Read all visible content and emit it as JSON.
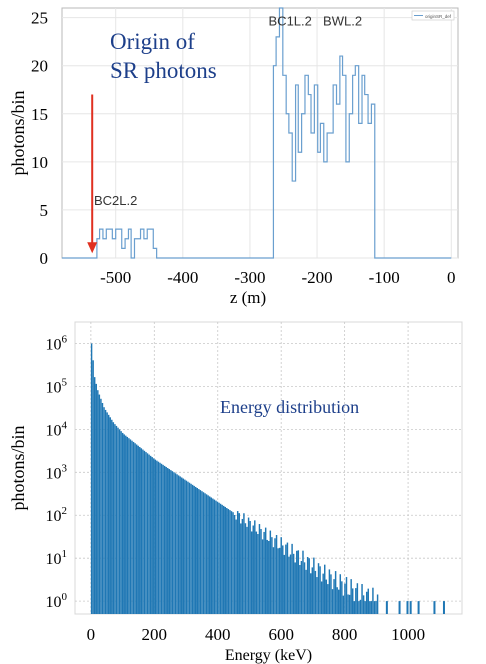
{
  "chart_data": [
    {
      "type": "line",
      "drawstyle": "steps",
      "annotation_title": [
        "Origin of",
        "SR photons"
      ],
      "ylabel": "photons/bin",
      "xlabel": "z (m)",
      "legend_entry": "originSR_def",
      "legend_position": "top-right",
      "grid": true,
      "xlim": [
        -580,
        10
      ],
      "ylim": [
        0,
        26
      ],
      "xticks": [
        -500,
        -400,
        -300,
        -200,
        -100,
        0
      ],
      "xtick_labels": [
        "-500",
        "-400",
        "-300",
        "-200",
        "-100",
        "0"
      ],
      "yticks": [
        0,
        5,
        10,
        15,
        20,
        25
      ],
      "ytick_labels": [
        "0",
        "5",
        "10",
        "15",
        "20",
        "25"
      ],
      "annotations": [
        {
          "text": "BC2L.2",
          "x": -500,
          "y": 5.5
        },
        {
          "text": "BC1L.2",
          "x": -240,
          "y": 24.2
        },
        {
          "text": "BWL.2",
          "x": -162,
          "y": 24.2
        }
      ],
      "arrow": {
        "x": -535,
        "y_from": 17,
        "y_to": 0.5,
        "color": "#e03020"
      },
      "series": [
        {
          "color": "#6a9fcf",
          "x": [
            -580,
            -528,
            -524,
            -519,
            -514,
            -510,
            -505,
            -500,
            -496,
            -491,
            -486,
            -481,
            -477,
            -472,
            -467,
            -463,
            -458,
            -453,
            -448,
            -444,
            -439,
            -434,
            -430,
            -425,
            -265,
            -261,
            -256,
            -251,
            -246,
            -242,
            -237,
            -232,
            -228,
            -223,
            -218,
            -213,
            -209,
            -204,
            -199,
            -195,
            -190,
            -185,
            -180,
            -176,
            -171,
            -166,
            -162,
            -157,
            -152,
            -147,
            -143,
            -138,
            -133,
            -129,
            -124,
            -119,
            -114,
            -110,
            -105,
            -100,
            -95,
            -91,
            -86,
            -81,
            -76,
            -72,
            -67,
            -62,
            -57,
            -53,
            -48,
            -43,
            -38,
            -34,
            -29,
            -24,
            -19,
            -15,
            -10,
            -5,
            0
          ],
          "y": [
            0,
            2,
            3,
            2,
            3,
            3,
            2,
            3,
            3,
            1,
            2,
            3,
            0,
            2,
            2,
            3,
            2,
            3,
            3,
            1,
            0,
            0,
            0,
            0,
            20,
            23,
            26,
            19,
            15,
            13,
            8,
            18,
            11,
            15,
            19,
            17,
            13,
            18,
            11,
            14,
            10,
            13,
            13,
            18,
            16,
            21,
            19,
            10,
            15,
            19,
            20,
            14,
            19,
            17,
            14,
            16,
            0,
            0,
            0,
            0,
            0,
            0,
            0,
            0,
            0,
            0,
            0,
            0,
            0,
            0,
            0,
            0,
            0,
            0,
            0,
            0,
            0,
            0,
            0,
            0,
            0
          ]
        }
      ]
    },
    {
      "type": "bar",
      "annotation_title": "Energy distribution",
      "ylabel": "photons/bin",
      "xlabel": "Energy (keV)",
      "yscale": "log",
      "color": "#1f77b4",
      "xlim": [
        -50,
        1170
      ],
      "ylim_exponent": [
        -0.3,
        6.5
      ],
      "xticks": [
        0,
        200,
        400,
        600,
        800,
        1000
      ],
      "xtick_labels": [
        "0",
        "200",
        "400",
        "600",
        "800",
        "1000"
      ],
      "ytick_exponents": [
        0,
        1,
        2,
        3,
        4,
        5,
        6
      ],
      "ytick_labels": [
        "10",
        "10",
        "10",
        "10",
        "10",
        "10",
        "10"
      ],
      "ytick_superscripts": [
        "0",
        "1",
        "2",
        "3",
        "4",
        "5",
        "6"
      ],
      "main_curve": {
        "energy_keV": [
          0,
          10,
          20,
          40,
          70,
          100,
          150,
          200,
          250,
          300,
          350,
          400,
          450,
          500,
          550,
          600,
          650,
          700,
          750,
          800,
          850,
          900
        ],
        "log10_photons": [
          6.0,
          5.2,
          4.9,
          4.5,
          4.15,
          3.9,
          3.6,
          3.3,
          3.05,
          2.8,
          2.55,
          2.3,
          2.05,
          1.8,
          1.55,
          1.3,
          1.05,
          0.8,
          0.55,
          0.35,
          0.15,
          0.0
        ]
      },
      "tail_bins_keV": [
        930,
        970,
        995,
        1005,
        1030,
        1080,
        1110
      ]
    }
  ]
}
